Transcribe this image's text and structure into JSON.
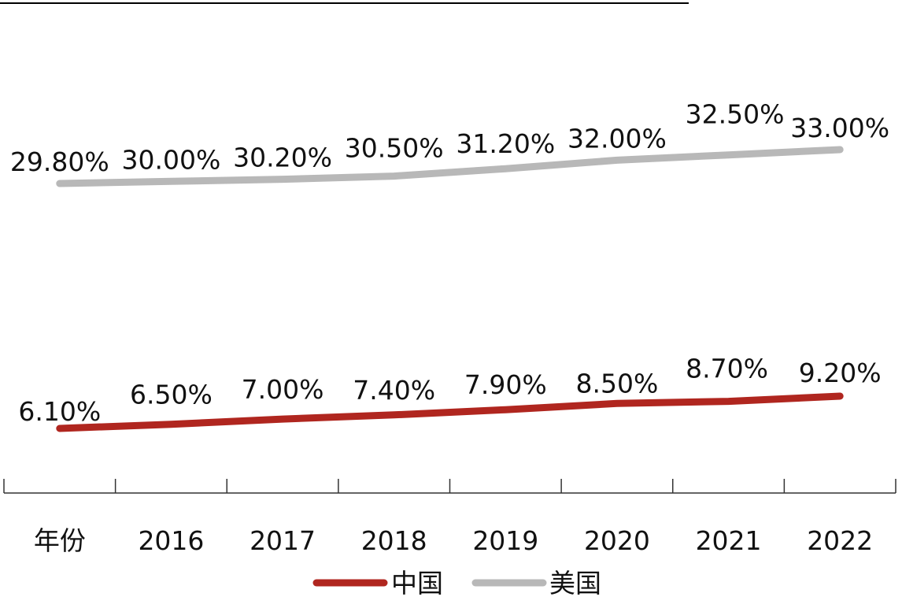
{
  "chart_data": {
    "type": "line",
    "categories": [
      "年份",
      "2016",
      "2017",
      "2018",
      "2019",
      "2020",
      "2021",
      "2022"
    ],
    "series": [
      {
        "name": "中国",
        "color": "#b0261f",
        "values": [
          6.1,
          6.5,
          7.0,
          7.4,
          7.9,
          8.5,
          8.7,
          9.2
        ],
        "labels": [
          "6.10%",
          "6.50%",
          "7.00%",
          "7.40%",
          "7.90%",
          "8.50%",
          "8.70%",
          "9.20%"
        ]
      },
      {
        "name": "美国",
        "color": "#b8b8b8",
        "values": [
          29.8,
          30.0,
          30.2,
          30.5,
          31.2,
          32.0,
          32.5,
          33.0
        ],
        "labels": [
          "29.80%",
          "30.00%",
          "30.20%",
          "30.50%",
          "31.20%",
          "32.00%",
          "32.50%",
          "33.00%"
        ]
      }
    ],
    "title": "",
    "xlabel": "",
    "ylabel": "",
    "legend_position": "bottom-center",
    "grid": false
  },
  "legend": {
    "items": [
      {
        "label": "中国",
        "color": "#b0261f"
      },
      {
        "label": "美国",
        "color": "#b8b8b8"
      }
    ]
  }
}
